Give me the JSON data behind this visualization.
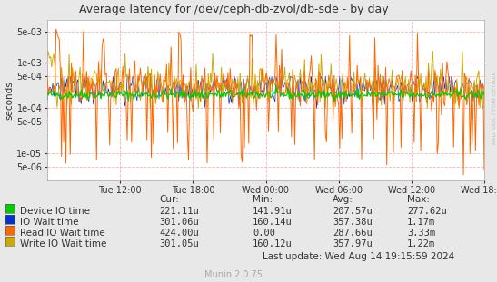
{
  "title": "Average latency for /dev/ceph-db-zvol/db-sde - by day",
  "ylabel": "seconds",
  "background_color": "#e8e8e8",
  "plot_bg_color": "#ffffff",
  "x_ticks_labels": [
    "Tue 12:00",
    "Tue 18:00",
    "Wed 00:00",
    "Wed 06:00",
    "Wed 12:00",
    "Wed 18:00"
  ],
  "y_ticks": [
    5e-06,
    1e-05,
    5e-05,
    0.0001,
    0.0005,
    0.001,
    0.005
  ],
  "ylim_min": 2.5e-06,
  "ylim_max": 0.009,
  "series": {
    "device_io": {
      "color": "#00cc00",
      "label": "Device IO time"
    },
    "io_wait": {
      "color": "#0033cc",
      "label": "IO Wait time"
    },
    "read_io_wait": {
      "color": "#ff6600",
      "label": "Read IO Wait time"
    },
    "write_io_wait": {
      "color": "#ccaa00",
      "label": "Write IO Wait time"
    }
  },
  "legend_data": {
    "headers": [
      "Cur:",
      "Min:",
      "Avg:",
      "Max:"
    ],
    "rows": [
      {
        "label": "Device IO time",
        "color": "#00cc00",
        "values": [
          "221.11u",
          "141.91u",
          "207.57u",
          "277.62u"
        ]
      },
      {
        "label": "IO Wait time",
        "color": "#0033cc",
        "values": [
          "301.06u",
          "160.14u",
          "357.38u",
          "1.17m"
        ]
      },
      {
        "label": "Read IO Wait time",
        "color": "#ff6600",
        "values": [
          "424.00u",
          "0.00",
          "287.66u",
          "3.33m"
        ]
      },
      {
        "label": "Write IO Wait time",
        "color": "#ccaa00",
        "values": [
          "301.05u",
          "160.12u",
          "357.97u",
          "1.22m"
        ]
      }
    ]
  },
  "footer": "Last update: Wed Aug 14 19:15:59 2024",
  "watermark": "Munin 2.0.75",
  "right_label": "RRDTOOL / TOBI OETIKER"
}
